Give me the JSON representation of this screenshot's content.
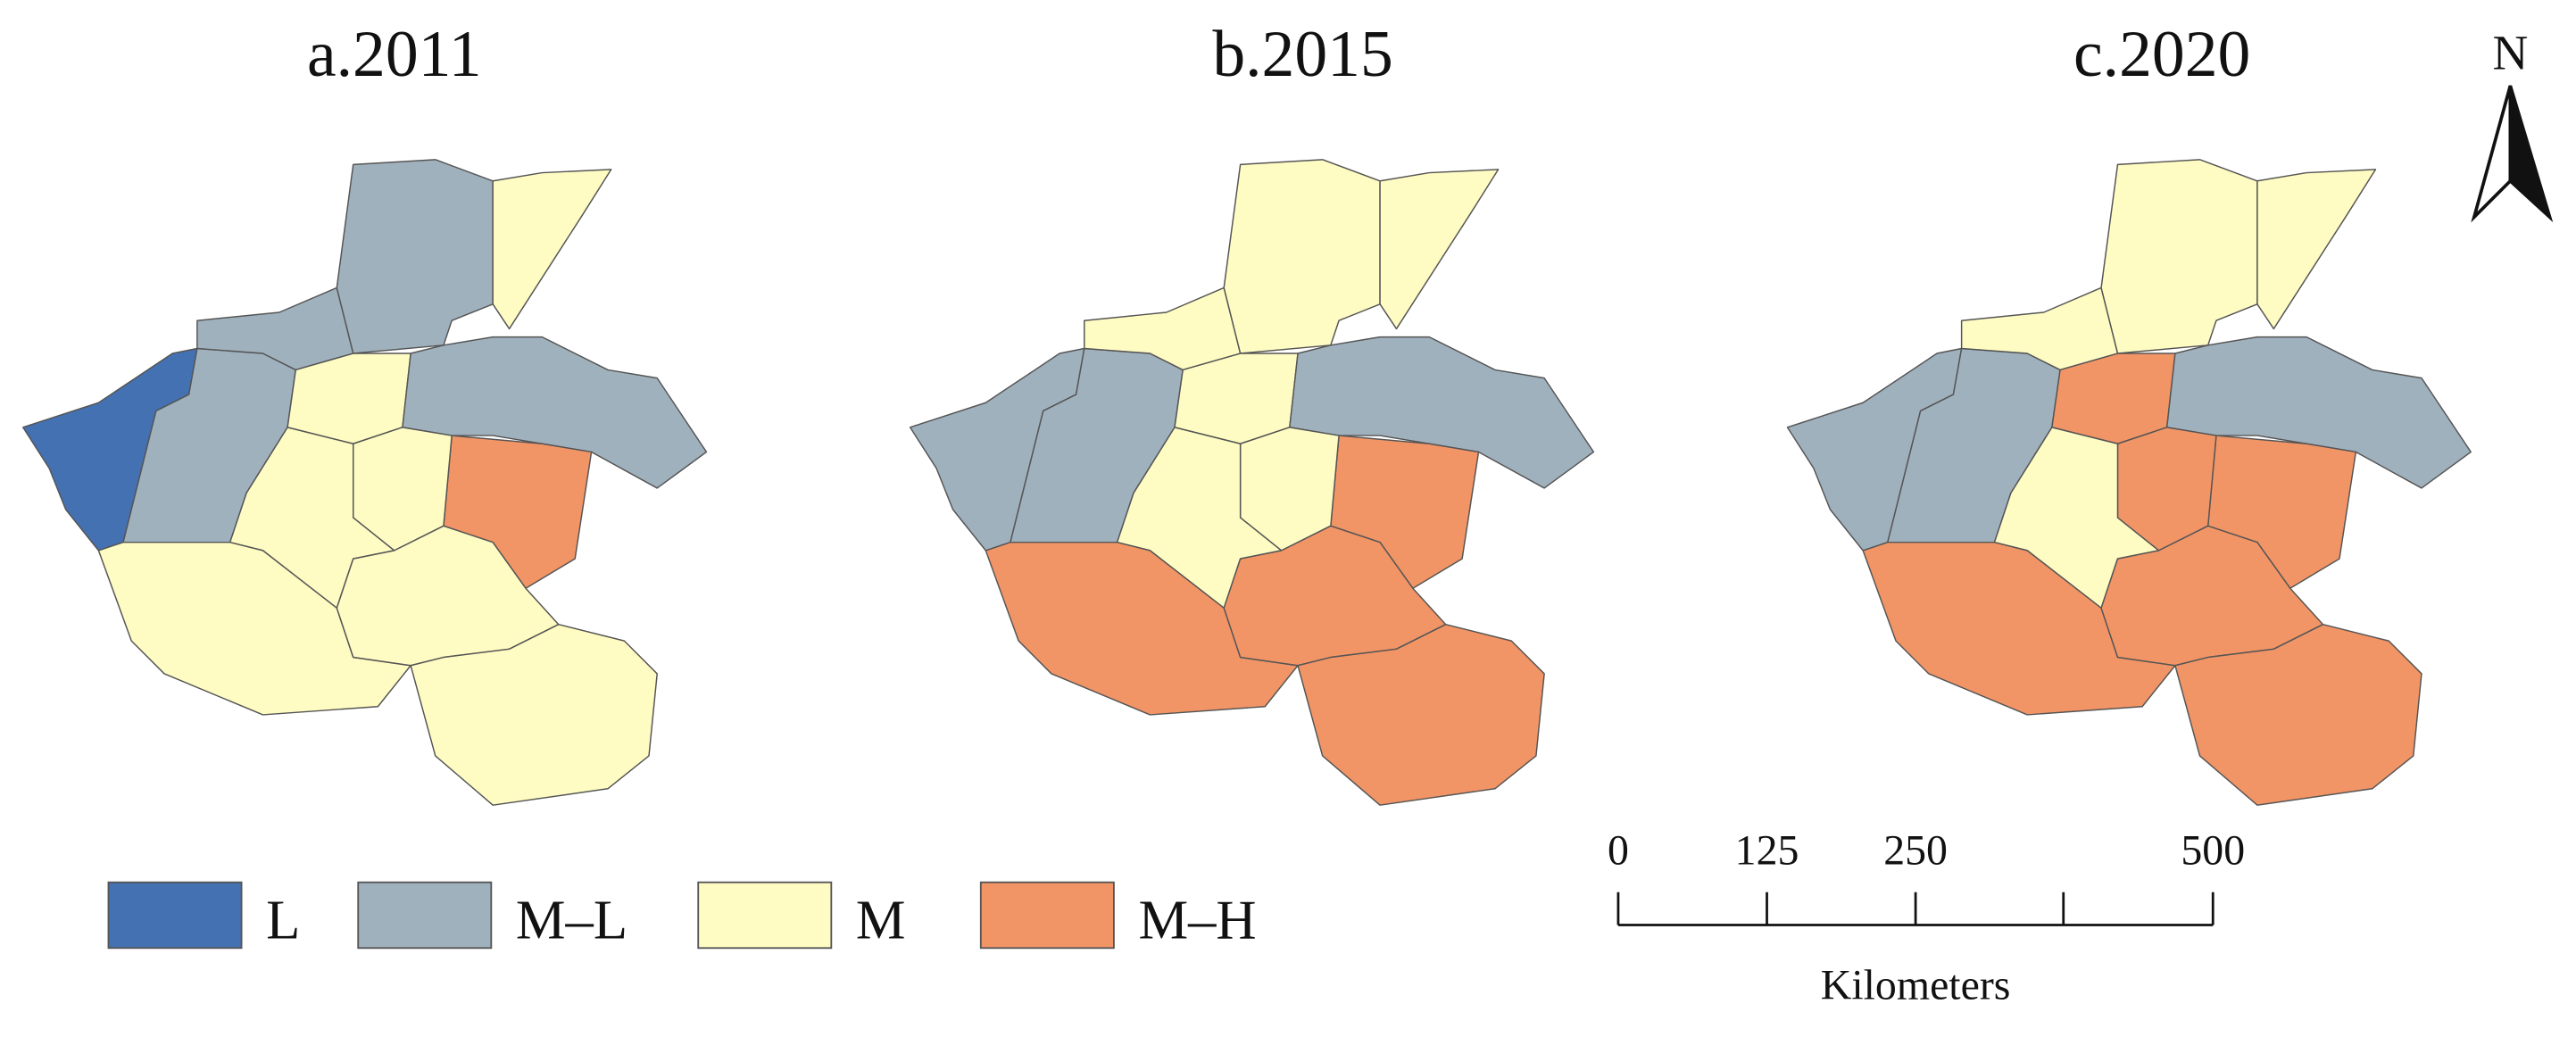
{
  "panels": [
    {
      "title": "a.2011"
    },
    {
      "title": "b.2015"
    },
    {
      "title": "c.2020"
    }
  ],
  "legend": {
    "items": [
      {
        "label": "L",
        "color": "#4471b2"
      },
      {
        "label": "M–L",
        "color": "#a0b1be"
      },
      {
        "label": "M",
        "color": "#fefcc2"
      },
      {
        "label": "M–H",
        "color": "#f29566"
      }
    ]
  },
  "scale_bar": {
    "ticks": [
      0,
      125,
      250,
      500
    ],
    "unit": "Kilometers"
  },
  "north_arrow": "N"
}
